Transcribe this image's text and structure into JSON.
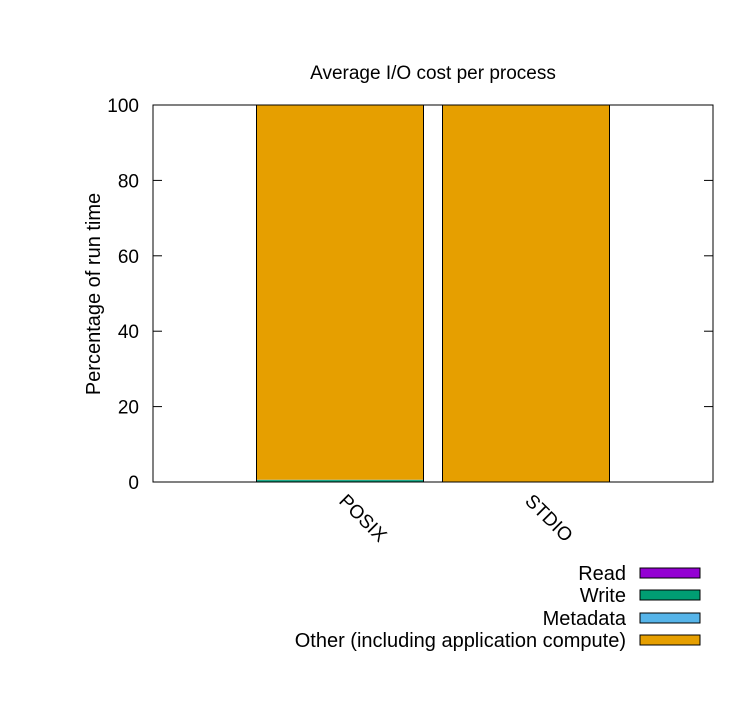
{
  "chart_data": {
    "type": "bar",
    "stacked": true,
    "title": "Average I/O cost per process",
    "xlabel": "",
    "ylabel": "Percentage of run time",
    "ylim": [
      0,
      100
    ],
    "yticks": [
      0,
      20,
      40,
      60,
      80,
      100
    ],
    "grid": false,
    "legend_position": "bottom-right",
    "categories": [
      "POSIX",
      "STDIO"
    ],
    "series": [
      {
        "name": "Read",
        "color": "#9400d3",
        "values": [
          0,
          0
        ]
      },
      {
        "name": "Write",
        "color": "#009e73",
        "values": [
          0.5,
          0
        ]
      },
      {
        "name": "Metadata",
        "color": "#56b4e9",
        "values": [
          0.1,
          0
        ]
      },
      {
        "name": "Other (including application compute)",
        "color": "#e69f00",
        "values": [
          99.4,
          100
        ]
      }
    ]
  }
}
